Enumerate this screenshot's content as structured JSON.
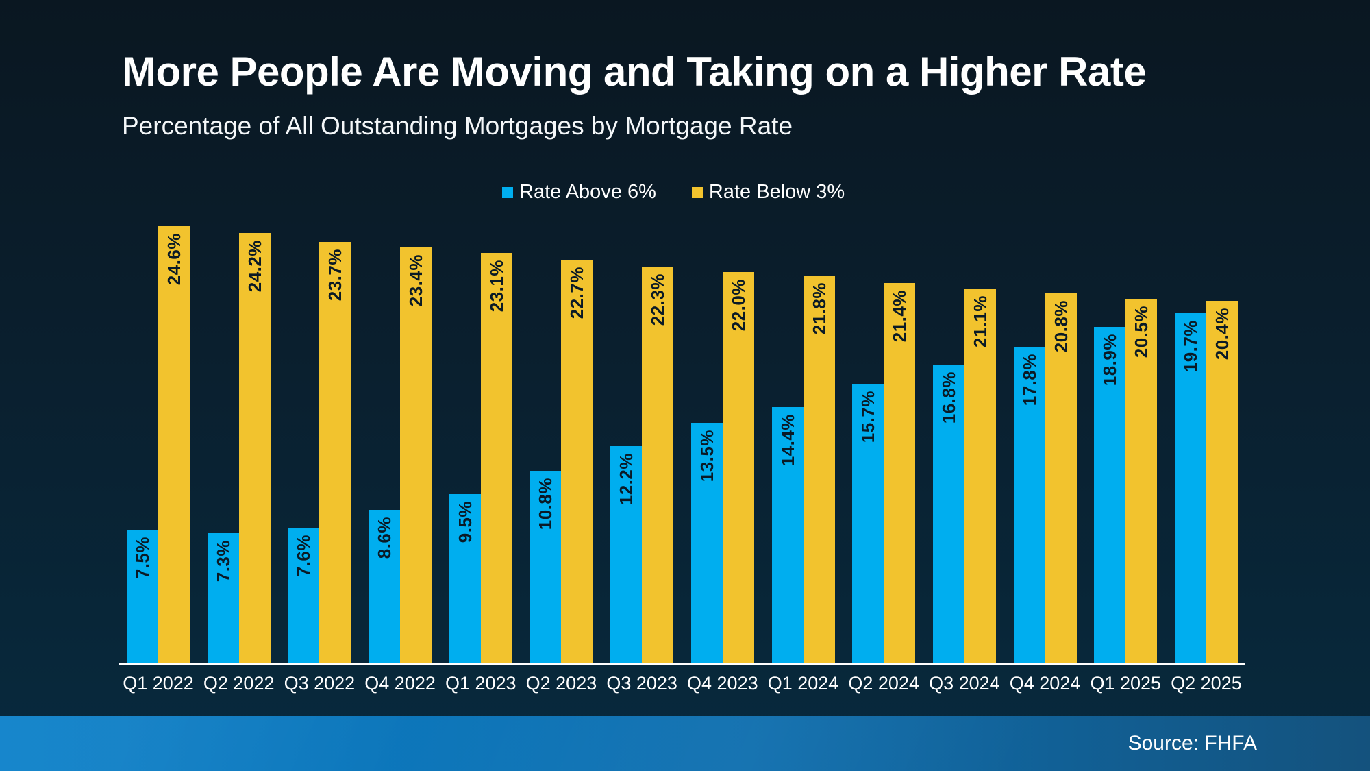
{
  "header": {
    "title": "More People Are Moving and Taking on a Higher Rate",
    "subtitle": "Percentage of All Outstanding Mortgages by Mortgage Rate"
  },
  "legend": [
    {
      "label": "Rate Above 6%",
      "color": "#00AEEF"
    },
    {
      "label": "Rate Below 3%",
      "color": "#F2C32E"
    }
  ],
  "footer": {
    "source": "Source: FHFA"
  },
  "colors": {
    "background_top": "#0a1721",
    "background_bottom": "#072a3e",
    "axis_line": "#ffffff",
    "value_label": "#0a1a26",
    "footer_left": "#0b80c9",
    "footer_right": "#14527d"
  },
  "chart_data": {
    "type": "bar",
    "title": "Percentage of All Outstanding Mortgages by Mortgage Rate",
    "xlabel": "",
    "ylabel": "",
    "ylim": [
      0,
      24.7
    ],
    "grid": false,
    "legend_position": "top",
    "categories": [
      "Q1 2022",
      "Q2 2022",
      "Q3 2022",
      "Q4 2022",
      "Q1 2023",
      "Q2 2023",
      "Q3 2023",
      "Q4 2023",
      "Q1 2024",
      "Q2 2024",
      "Q3 2024",
      "Q4 2024",
      "Q1 2025",
      "Q2 2025"
    ],
    "series": [
      {
        "name": "Rate Above 6%",
        "color": "#00AEEF",
        "values": [
          7.5,
          7.3,
          7.6,
          8.6,
          9.5,
          10.8,
          12.2,
          13.5,
          14.4,
          15.7,
          16.8,
          17.8,
          18.9,
          19.7
        ],
        "labels": [
          "7.5%",
          "7.3%",
          "7.6%",
          "8.6%",
          "9.5%",
          "10.8%",
          "12.2%",
          "13.5%",
          "14.4%",
          "15.7%",
          "16.8%",
          "17.8%",
          "18.9%",
          "19.7%"
        ]
      },
      {
        "name": "Rate Below 3%",
        "color": "#F2C32E",
        "values": [
          24.6,
          24.2,
          23.7,
          23.4,
          23.1,
          22.7,
          22.3,
          22.0,
          21.8,
          21.4,
          21.1,
          20.8,
          20.5,
          20.4
        ],
        "labels": [
          "24.6%",
          "24.2%",
          "23.7%",
          "23.4%",
          "23.1%",
          "22.7%",
          "22.3%",
          "22.0%",
          "21.8%",
          "21.4%",
          "21.1%",
          "20.8%",
          "20.5%",
          "20.4%"
        ]
      }
    ]
  }
}
